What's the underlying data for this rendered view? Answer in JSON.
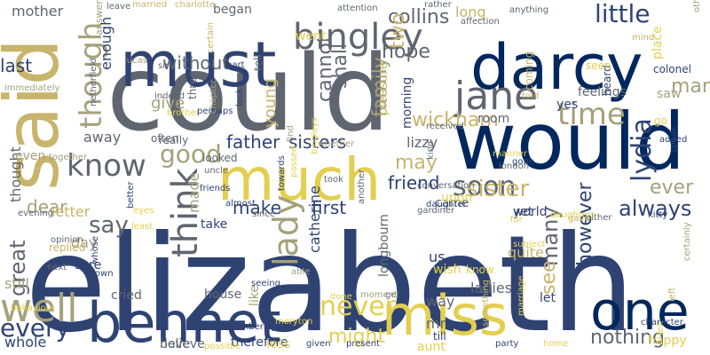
{
  "palette": {
    "navy": "#00275e",
    "slate": "#2f4373",
    "gray": "#5f6670",
    "olive": "#a5a17b",
    "tan": "#c8b46a",
    "gold": "#e3cf4f",
    "pale": "#f0df8c"
  },
  "words": [
    "elizabeth",
    "could",
    "would",
    "said",
    "darcy",
    "must",
    "much",
    "bennet",
    "miss",
    "one",
    "jane",
    "bingley",
    "think",
    "know",
    "time",
    "though",
    "lady",
    "never",
    "soon",
    "sister",
    "lydia",
    "good",
    "may",
    "might",
    "well",
    "every",
    "make",
    "first",
    "collins",
    "little",
    "say",
    "great",
    "many",
    "always",
    "nothing",
    "however",
    "see",
    "man",
    "wickham",
    "ever",
    "dear",
    "friend",
    "father",
    "sisters",
    "family",
    "room",
    "shall",
    "cannot",
    "hope",
    "two",
    "without",
    "last",
    "give",
    "mother",
    "young",
    "enough",
    "answer",
    "thought",
    "away",
    "day",
    "letter",
    "made",
    "catherine",
    "longbourn",
    "long",
    "mr",
    "way",
    "us",
    "quite",
    "let",
    "ladies",
    "lizzy",
    "saw",
    "go",
    "yes",
    "happy",
    "still",
    "whole",
    "house",
    "believe",
    "therefore",
    "like",
    "less",
    "love",
    "sure",
    "replied",
    "cried",
    "often",
    "even",
    "really",
    "take",
    "friends",
    "looked",
    "three",
    "tell",
    "went",
    "morning",
    "pleasure",
    "place",
    "feelings",
    "colonel",
    "heard",
    "seen",
    "yet",
    "world",
    "came",
    "upon",
    "wish",
    "aunt",
    "till",
    "better",
    "indeed",
    "sir",
    "certain",
    "began",
    "married",
    "charlotte",
    "attention",
    "rather",
    "affection",
    "others",
    "mind",
    "told",
    "know",
    "coming",
    "received",
    "daughter",
    "gardiner",
    "conversation",
    "almost",
    "since",
    "took",
    "another",
    "get",
    "moment",
    "done",
    "evening",
    "opinion",
    "next",
    "town",
    "whose",
    "able",
    "seeing",
    "meryton",
    "pemberley",
    "given",
    "present",
    "party",
    "home",
    "felt",
    "something",
    "marriage",
    "character",
    "certainly",
    "left",
    "kitty",
    "either",
    "gave",
    "subject",
    "daughters",
    "london",
    "kind",
    "gone",
    "manner",
    "speak",
    "added",
    "brother",
    "perhaps",
    "chapter",
    "look",
    "find",
    "whether",
    "towards",
    "passed",
    "together",
    "immediately",
    "lucas",
    "netherfield",
    "bingleys",
    "possible",
    "behaviour",
    "least",
    "uncle",
    "leave",
    "eyes",
    "part",
    "far",
    "anything",
    "woman",
    "hear",
    "going",
    "known",
    "side",
    "happiness",
    "half",
    "seemed",
    "life",
    "even",
    "answered",
    "think"
  ]
}
